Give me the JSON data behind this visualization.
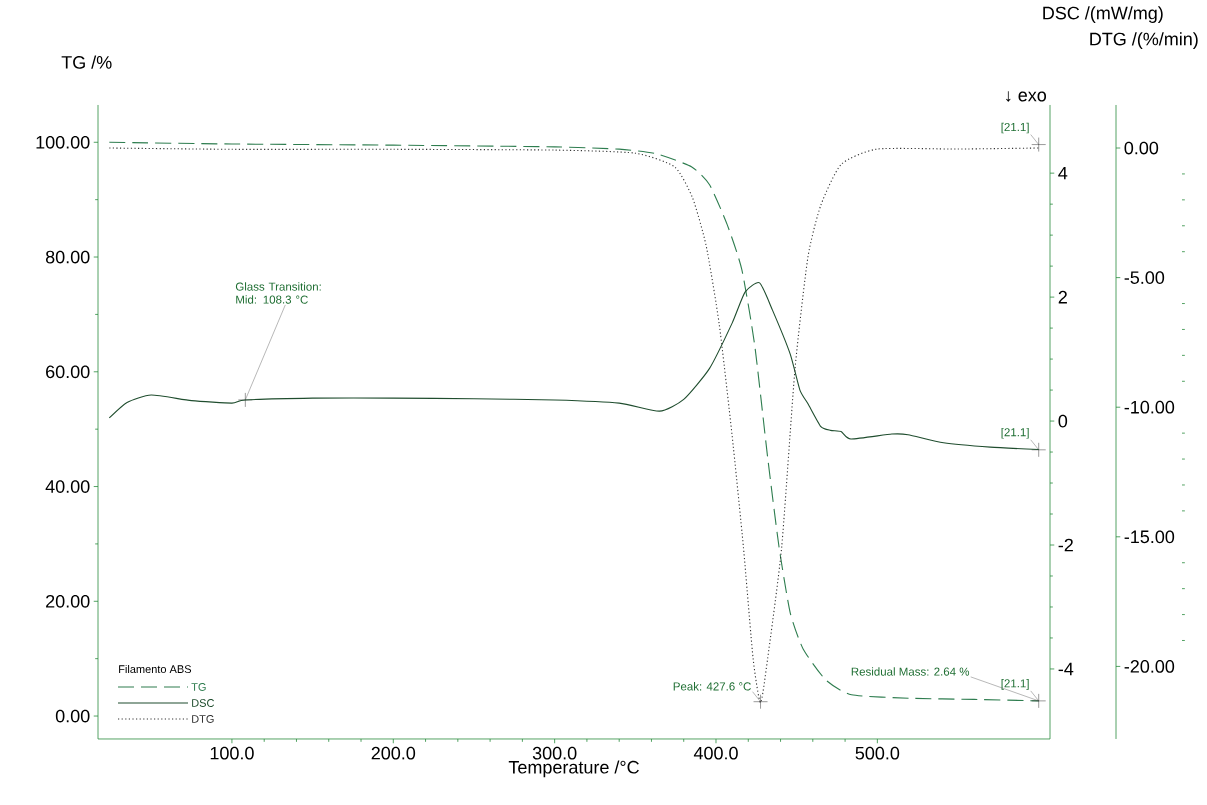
{
  "chart_data": {
    "type": "line",
    "xlabel": "Temperature /°C",
    "ylabel": "TG /%",
    "y2label": "DSC /(mW/mg)",
    "y3label": "DTG /(%/min)",
    "legend_title": "Filamento ABS",
    "legend": "bottom left",
    "xlim": [
      17,
      607
    ],
    "xticks": [
      {
        "value": 100,
        "label": "100.0"
      },
      {
        "value": 200,
        "label": "200.0"
      },
      {
        "value": 300,
        "label": "300.0"
      },
      {
        "value": 400,
        "label": "400.0"
      },
      {
        "value": 500,
        "label": "500.0"
      }
    ],
    "ylim": [
      -4,
      106.5
    ],
    "yticks": [
      {
        "value": 0,
        "label": "0.00"
      },
      {
        "value": 20,
        "label": "20.00"
      },
      {
        "value": 40,
        "label": "40.00"
      },
      {
        "value": 60,
        "label": "60.00"
      },
      {
        "value": 80,
        "label": "80.00"
      },
      {
        "value": 100,
        "label": "100.00"
      }
    ],
    "y2lim": [
      -5.13,
      5.1
    ],
    "y2ticks": [
      -4,
      -2,
      0,
      2,
      4
    ],
    "y3lim": [
      -22.8,
      1.66
    ],
    "y3ticks": [
      {
        "value": -20,
        "label": "-20.00"
      },
      {
        "value": -15,
        "label": "-15.00"
      },
      {
        "value": -10,
        "label": "-10.00"
      },
      {
        "value": -5,
        "label": "-5.00"
      },
      {
        "value": 0,
        "label": "0.00"
      }
    ],
    "series": [
      {
        "name": "TG",
        "color": "#2e7d4f",
        "line_style": "dashed",
        "x": [
          24,
          100,
          200,
          300,
          340,
          363,
          385,
          396,
          407,
          416,
          424,
          432,
          439,
          446,
          454,
          468,
          484,
          520,
          560,
          600
        ],
        "values": [
          100,
          99.7,
          99.5,
          99.2,
          98.8,
          98.0,
          95.7,
          92.6,
          85.6,
          77.8,
          64.6,
          45.1,
          29.6,
          18,
          11.7,
          6.3,
          3.7,
          3.1,
          2.9,
          2.64
        ]
      },
      {
        "name": "DSC",
        "color": "#1f4d2e",
        "line_style": "solid",
        "axis": "y2",
        "x": [
          24,
          35,
          50,
          75,
          100,
          108.3,
          150,
          200,
          250,
          300,
          340,
          365,
          380,
          396,
          410,
          418,
          427,
          435,
          446,
          452,
          457,
          465,
          471,
          477.5,
          483.6,
          509,
          519,
          541,
          570,
          600
        ],
        "values": [
          0.05,
          0.3,
          0.42,
          0.33,
          0.29,
          0.34,
          0.37,
          0.37,
          0.36,
          0.34,
          0.29,
          0.16,
          0.35,
          0.85,
          1.58,
          2.08,
          2.23,
          1.79,
          1.08,
          0.5,
          0.28,
          -0.09,
          -0.15,
          -0.17,
          -0.29,
          -0.21,
          -0.22,
          -0.35,
          -0.42,
          -0.46
        ]
      },
      {
        "name": "DTG",
        "color": "#333333",
        "line_style": "dotted",
        "axis": "y3",
        "x": [
          24,
          100,
          200,
          300,
          350,
          374.4,
          385.5,
          394,
          402,
          410,
          417,
          423,
          427.6,
          432,
          440.7,
          449,
          457,
          465,
          477.6,
          500,
          550,
          600
        ],
        "values": [
          0,
          -0.05,
          -0.05,
          -0.08,
          -0.2,
          -0.73,
          -1.93,
          -3.8,
          -6.8,
          -11.1,
          -15.4,
          -19.7,
          -21.4,
          -19.7,
          -15.4,
          -8.5,
          -4.2,
          -2.2,
          -0.63,
          -0.04,
          -0.04,
          0
        ]
      }
    ],
    "annotations": [
      {
        "text": "Glass Transition: Mid: 108.3 °C",
        "x": 108.3,
        "y": 55.1
      },
      {
        "text": "Peak: 427.6 °C",
        "x": 427.6,
        "y": 2.5
      },
      {
        "text": "[21.1]",
        "x": 600,
        "y": 2.64
      },
      {
        "text": "Residual Mass: 2.64 %",
        "x": 600,
        "y": 2.64
      },
      {
        "text": "[21.1]",
        "x": 600,
        "y": 46.4
      },
      {
        "text": "[21.1]",
        "x": 600,
        "y": 99.6
      },
      "↓ exo"
    ]
  }
}
